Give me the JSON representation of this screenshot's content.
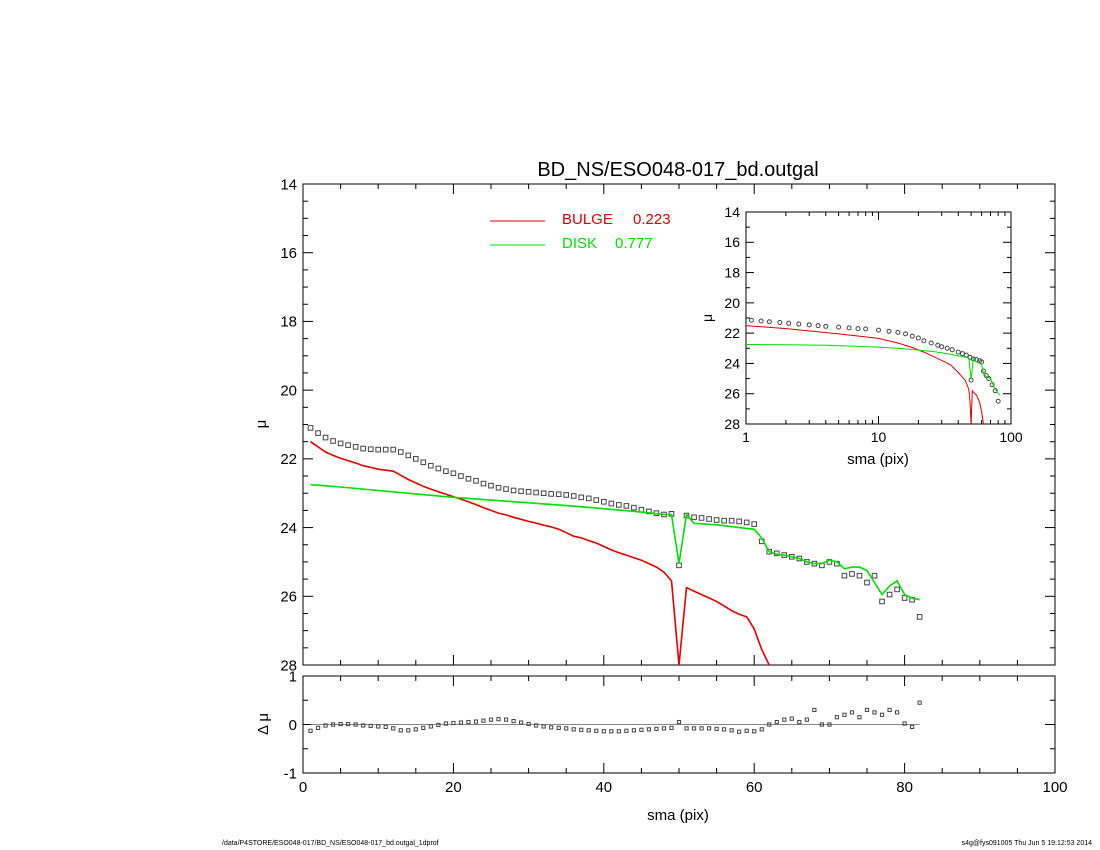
{
  "chart_data": [
    {
      "type": "scatter",
      "panel": "main",
      "title": "BD_NS/ESO048-017_bd.outgal",
      "xlabel": "",
      "ylabel": "μ",
      "xlim": [
        0,
        100
      ],
      "ylim": [
        28,
        14
      ],
      "x_ticks": [],
      "y_ticks": [
        "14",
        "16",
        "18",
        "20",
        "22",
        "24",
        "26",
        "28"
      ],
      "legend_position": "top-center",
      "legend": [
        {
          "label": "BULGE",
          "value": "0.223",
          "color": "#e00000"
        },
        {
          "label": "DISK",
          "value": "0.777",
          "color": "#00dd00"
        }
      ],
      "series": [
        {
          "name": "data",
          "marker": "square",
          "color": "#444444",
          "x": [
            1,
            2,
            3,
            4,
            5,
            6,
            7,
            8,
            9,
            10,
            11,
            12,
            13,
            14,
            15,
            16,
            17,
            18,
            19,
            20,
            21,
            22,
            23,
            24,
            25,
            26,
            27,
            28,
            29,
            30,
            31,
            32,
            33,
            34,
            35,
            36,
            37,
            38,
            39,
            40,
            41,
            42,
            43,
            44,
            45,
            46,
            47,
            48,
            49,
            50,
            51,
            52,
            53,
            54,
            55,
            56,
            57,
            58,
            59,
            60,
            61,
            62,
            63,
            64,
            65,
            66,
            67,
            68,
            69,
            70,
            71,
            72,
            73,
            74,
            75,
            76,
            77,
            78,
            79,
            80,
            81,
            82
          ],
          "y": [
            21.1,
            21.25,
            21.38,
            21.48,
            21.55,
            21.6,
            21.65,
            21.7,
            21.72,
            21.73,
            21.73,
            21.73,
            21.8,
            21.9,
            22.0,
            22.1,
            22.2,
            22.28,
            22.36,
            22.42,
            22.5,
            22.58,
            22.64,
            22.72,
            22.78,
            22.84,
            22.88,
            22.92,
            22.94,
            22.96,
            22.98,
            23.0,
            23.02,
            23.03,
            23.05,
            23.08,
            23.12,
            23.15,
            23.2,
            23.25,
            23.3,
            23.34,
            23.37,
            23.42,
            23.48,
            23.53,
            23.58,
            23.62,
            23.6,
            25.1,
            23.65,
            23.7,
            23.72,
            23.75,
            23.78,
            23.8,
            23.8,
            23.82,
            23.85,
            23.9,
            24.4,
            24.7,
            24.75,
            24.8,
            24.85,
            24.9,
            25.0,
            25.05,
            25.1,
            25.0,
            25.05,
            25.4,
            25.35,
            25.4,
            25.6,
            25.4,
            26.15,
            25.95,
            25.8,
            26.05,
            26.1,
            26.6
          ]
        },
        {
          "name": "BULGE",
          "line": true,
          "color": "#e00000",
          "x": [
            1,
            2,
            3,
            4,
            5,
            6,
            7,
            8,
            9,
            10,
            11,
            12,
            13,
            14,
            15,
            16,
            17,
            18,
            19,
            20,
            21,
            22,
            23,
            24,
            25,
            26,
            27,
            28,
            29,
            30,
            31,
            32,
            33,
            34,
            35,
            36,
            37,
            38,
            39,
            40,
            41,
            42,
            43,
            44,
            45,
            46,
            47,
            48,
            49,
            50,
            51,
            52,
            53,
            54,
            55,
            56,
            57,
            58,
            59,
            60,
            61,
            62
          ],
          "y": [
            21.5,
            21.65,
            21.8,
            21.9,
            21.98,
            22.05,
            22.12,
            22.2,
            22.25,
            22.3,
            22.33,
            22.36,
            22.48,
            22.6,
            22.7,
            22.8,
            22.88,
            22.96,
            23.03,
            23.1,
            23.17,
            23.25,
            23.33,
            23.42,
            23.5,
            23.58,
            23.63,
            23.7,
            23.76,
            23.82,
            23.87,
            23.93,
            23.98,
            24.05,
            24.15,
            24.25,
            24.3,
            24.38,
            24.45,
            24.55,
            24.65,
            24.73,
            24.8,
            24.88,
            24.95,
            25.05,
            25.15,
            25.3,
            25.55,
            28.0,
            25.75,
            25.85,
            25.95,
            26.05,
            26.15,
            26.28,
            26.42,
            26.52,
            26.6,
            26.95,
            27.55,
            28.05
          ]
        },
        {
          "name": "DISK",
          "line": true,
          "color": "#00dd00",
          "x": [
            1,
            5,
            10,
            15,
            20,
            25,
            30,
            35,
            40,
            45,
            48,
            49,
            50,
            51,
            52,
            55,
            58,
            60,
            61,
            62,
            63,
            64,
            65,
            66,
            67,
            68,
            69,
            70,
            71,
            72,
            73,
            74,
            75,
            76,
            77,
            78,
            79,
            80,
            81,
            82
          ],
          "y": [
            22.75,
            22.82,
            22.92,
            23.02,
            23.12,
            23.2,
            23.28,
            23.36,
            23.45,
            23.55,
            23.62,
            23.62,
            25.05,
            23.62,
            23.88,
            23.92,
            24.0,
            24.05,
            24.3,
            24.7,
            24.78,
            24.8,
            24.85,
            24.9,
            25.0,
            25.05,
            25.05,
            24.95,
            25.0,
            25.2,
            25.15,
            25.15,
            25.25,
            25.6,
            25.95,
            25.7,
            25.55,
            25.95,
            26.05,
            26.1
          ]
        }
      ]
    },
    {
      "type": "scatter",
      "panel": "inset",
      "xlabel": "sma (pix)",
      "ylabel": "μ",
      "xscale": "log",
      "xlim": [
        1,
        100
      ],
      "ylim": [
        28,
        14
      ],
      "x_ticks": [
        "1",
        "10",
        "100"
      ],
      "y_ticks": [
        "14",
        "16",
        "18",
        "20",
        "22",
        "24",
        "26",
        "28"
      ],
      "series": [
        {
          "name": "data",
          "marker": "circle",
          "color": "#444444",
          "x": [
            1.1,
            1.3,
            1.5,
            1.8,
            2.1,
            2.5,
            3,
            3.5,
            4,
            5,
            6,
            7,
            8,
            10,
            12,
            14,
            16,
            18,
            20,
            22,
            25,
            28,
            30,
            33,
            36,
            40,
            43,
            46,
            49,
            50,
            52,
            55,
            58,
            60,
            62,
            65,
            68,
            72,
            76,
            80
          ],
          "y": [
            21.15,
            21.2,
            21.25,
            21.3,
            21.35,
            21.4,
            21.45,
            21.5,
            21.55,
            21.6,
            21.65,
            21.7,
            21.72,
            21.8,
            21.88,
            21.95,
            22.05,
            22.2,
            22.32,
            22.5,
            22.65,
            22.8,
            22.9,
            23.0,
            23.1,
            23.25,
            23.35,
            23.45,
            23.6,
            25.1,
            23.7,
            23.75,
            23.82,
            23.9,
            24.5,
            24.8,
            25.0,
            25.4,
            25.8,
            26.5
          ]
        },
        {
          "name": "BULGE",
          "line": true,
          "color": "#e00000",
          "x": [
            1,
            2,
            3,
            5,
            8,
            10,
            14,
            18,
            22,
            26,
            30,
            35,
            40,
            45,
            48,
            49,
            50,
            51,
            52,
            55,
            58,
            60,
            62
          ],
          "y": [
            21.5,
            21.7,
            21.85,
            22.05,
            22.25,
            22.35,
            22.65,
            22.95,
            23.25,
            23.55,
            23.8,
            24.1,
            24.6,
            25.1,
            25.7,
            26.5,
            28.0,
            25.8,
            25.9,
            26.1,
            26.6,
            27.2,
            28.0
          ]
        },
        {
          "name": "DISK",
          "line": true,
          "color": "#00dd00",
          "x": [
            1,
            2,
            4,
            6,
            10,
            14,
            18,
            22,
            26,
            30,
            35,
            40,
            45,
            48,
            50,
            52,
            55,
            60,
            62,
            65,
            70,
            75,
            80,
            82
          ],
          "y": [
            22.75,
            22.77,
            22.8,
            22.85,
            22.92,
            23.0,
            23.08,
            23.15,
            23.22,
            23.3,
            23.4,
            23.5,
            23.58,
            23.62,
            25.05,
            23.65,
            23.9,
            24.05,
            24.7,
            24.85,
            25.0,
            25.6,
            25.95,
            26.1
          ]
        }
      ]
    },
    {
      "type": "scatter",
      "panel": "residual",
      "xlabel": "sma (pix)",
      "ylabel": "Δ μ",
      "xlim": [
        0,
        100
      ],
      "ylim": [
        -1,
        1
      ],
      "x_ticks": [
        "0",
        "20",
        "40",
        "60",
        "80",
        "100"
      ],
      "y_ticks": [
        "-1",
        "0",
        "1"
      ],
      "series": [
        {
          "name": "residual",
          "marker": "square",
          "color": "#444444",
          "x": [
            1,
            2,
            3,
            4,
            5,
            6,
            7,
            8,
            9,
            10,
            11,
            12,
            13,
            14,
            15,
            16,
            17,
            18,
            19,
            20,
            21,
            22,
            23,
            24,
            25,
            26,
            27,
            28,
            29,
            30,
            31,
            32,
            33,
            34,
            35,
            36,
            37,
            38,
            39,
            40,
            41,
            42,
            43,
            44,
            45,
            46,
            47,
            48,
            49,
            50,
            51,
            52,
            53,
            54,
            55,
            56,
            57,
            58,
            59,
            60,
            61,
            62,
            63,
            64,
            65,
            66,
            67,
            68,
            69,
            70,
            71,
            72,
            73,
            74,
            75,
            76,
            77,
            78,
            79,
            80,
            81,
            82
          ],
          "y": [
            -0.13,
            -0.07,
            -0.02,
            0.0,
            0.01,
            0.01,
            0.0,
            -0.02,
            -0.03,
            -0.04,
            -0.05,
            -0.08,
            -0.12,
            -0.12,
            -0.1,
            -0.07,
            -0.04,
            -0.01,
            0.02,
            0.03,
            0.04,
            0.05,
            0.06,
            0.08,
            0.1,
            0.11,
            0.1,
            0.07,
            0.04,
            0.01,
            -0.02,
            -0.04,
            -0.06,
            -0.07,
            -0.08,
            -0.1,
            -0.11,
            -0.12,
            -0.13,
            -0.14,
            -0.14,
            -0.14,
            -0.13,
            -0.12,
            -0.11,
            -0.1,
            -0.09,
            -0.08,
            -0.07,
            0.05,
            -0.08,
            -0.08,
            -0.08,
            -0.08,
            -0.09,
            -0.1,
            -0.12,
            -0.15,
            -0.13,
            -0.14,
            -0.1,
            0.0,
            0.05,
            0.1,
            0.12,
            0.05,
            0.1,
            0.3,
            0.0,
            0.0,
            0.15,
            0.2,
            0.25,
            0.15,
            0.3,
            0.25,
            0.2,
            0.3,
            0.25,
            0.02,
            -0.05,
            0.45
          ]
        }
      ]
    }
  ],
  "footer": {
    "left": "/data/P4STORE/ESO048-017/BD_NS/ESO048-017_bd.outgal_1dprof",
    "right": "s4g@fys091005  Thu Jun  5 19:12:53 2014"
  }
}
